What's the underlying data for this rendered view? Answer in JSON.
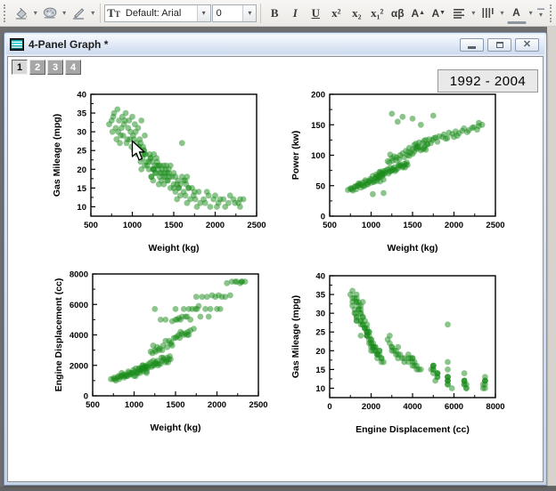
{
  "toolbar": {
    "font_combo": {
      "value": "Default: Arial"
    },
    "size_combo": {
      "value": "0"
    },
    "format_buttons": {
      "bold": "B",
      "italic": "I",
      "underline": "U",
      "superscript": "x²",
      "subscript": "x₂",
      "subsuperscript": "x₁²",
      "greek": "αβ",
      "increase_font": "A",
      "decrease_font": "A",
      "font_color": "A"
    }
  },
  "window": {
    "title": "4-Panel Graph *"
  },
  "layer_buttons": {
    "labels": [
      "1",
      "2",
      "3",
      "4"
    ],
    "active": "1"
  },
  "annotation": "1992 - 2004",
  "chart_data": {
    "type": "scatter",
    "marker": {
      "color": "#1a8c1a",
      "opacity": 0.5,
      "radius": 3.4
    },
    "record_fields": [
      "weight_kg",
      "gas_mileage_mpg",
      "power_kw",
      "engine_displacement_cc"
    ],
    "records": [
      [
        750,
        33,
        45,
        1100
      ],
      [
        780,
        35,
        42,
        1000
      ],
      [
        800,
        31,
        48,
        1200
      ],
      [
        820,
        36,
        44,
        1100
      ],
      [
        840,
        33,
        50,
        1300
      ],
      [
        860,
        29,
        52,
        1300
      ],
      [
        880,
        34,
        47,
        1200
      ],
      [
        900,
        32,
        55,
        1400
      ],
      [
        920,
        35,
        50,
        1300
      ],
      [
        940,
        28,
        57,
        1500
      ],
      [
        960,
        33,
        52,
        1400
      ],
      [
        980,
        30,
        58,
        1500
      ],
      [
        1000,
        34,
        55,
        1300
      ],
      [
        1010,
        29,
        60,
        1600
      ],
      [
        1030,
        32,
        56,
        1500
      ],
      [
        1050,
        27,
        62,
        1600
      ],
      [
        1070,
        31,
        58,
        1500
      ],
      [
        1090,
        28,
        63,
        1700
      ],
      [
        1110,
        33,
        57,
        1600
      ],
      [
        1130,
        26,
        65,
        1800
      ],
      [
        760,
        30,
        46,
        1200
      ],
      [
        810,
        28,
        49,
        1300
      ],
      [
        870,
        31,
        53,
        1400
      ],
      [
        930,
        27,
        59,
        1600
      ],
      [
        990,
        26,
        61,
        1700
      ],
      [
        1040,
        30,
        57,
        1500
      ],
      [
        1100,
        27,
        64,
        1800
      ],
      [
        1150,
        29,
        60,
        1600
      ],
      [
        720,
        32,
        43,
        1100
      ],
      [
        850,
        27,
        54,
        1500
      ],
      [
        890,
        29,
        51,
        1300
      ],
      [
        950,
        31,
        53,
        1400
      ],
      [
        1020,
        25,
        66,
        1800
      ],
      [
        1080,
        26,
        62,
        1700
      ],
      [
        1140,
        25,
        68,
        1900
      ],
      [
        770,
        34,
        44,
        1100
      ],
      [
        830,
        30,
        50,
        1250
      ],
      [
        910,
        33,
        49,
        1300
      ],
      [
        970,
        28,
        56,
        1500
      ],
      [
        1060,
        25,
        64,
        1800
      ],
      [
        1060,
        24,
        68,
        1800
      ],
      [
        1100,
        22,
        72,
        2000
      ],
      [
        1140,
        25,
        70,
        1900
      ],
      [
        1180,
        21,
        75,
        2100
      ],
      [
        1220,
        23,
        73,
        2000
      ],
      [
        1260,
        20,
        78,
        2200
      ],
      [
        1300,
        22,
        76,
        2100
      ],
      [
        1340,
        19,
        82,
        2300
      ],
      [
        1380,
        21,
        80,
        2200
      ],
      [
        1420,
        19,
        85,
        2400
      ],
      [
        1080,
        26,
        66,
        1700
      ],
      [
        1120,
        23,
        71,
        1900
      ],
      [
        1160,
        24,
        69,
        1800
      ],
      [
        1200,
        20,
        77,
        2200
      ],
      [
        1240,
        22,
        74,
        2000
      ],
      [
        1280,
        19,
        80,
        2300
      ],
      [
        1320,
        21,
        78,
        2100
      ],
      [
        1360,
        20,
        83,
        2400
      ],
      [
        1400,
        18,
        86,
        2500
      ],
      [
        1440,
        20,
        84,
        2400
      ],
      [
        1090,
        25,
        67,
        1800
      ],
      [
        1150,
        21,
        74,
        2000
      ],
      [
        1210,
        24,
        70,
        1900
      ],
      [
        1270,
        21,
        76,
        2100
      ],
      [
        1330,
        18,
        84,
        2500
      ],
      [
        1390,
        19,
        82,
        2300
      ],
      [
        1430,
        17,
        88,
        2600
      ],
      [
        1110,
        20,
        73,
        2000
      ],
      [
        1170,
        22,
        72,
        1900
      ],
      [
        1230,
        18,
        79,
        2300
      ],
      [
        1290,
        23,
        74,
        2000
      ],
      [
        1350,
        17,
        85,
        2500
      ],
      [
        1410,
        21,
        80,
        2200
      ],
      [
        1130,
        24,
        68,
        1800
      ],
      [
        1250,
        20,
        75,
        2100
      ],
      [
        1200,
        22,
        90,
        2900
      ],
      [
        1250,
        20,
        95,
        3000
      ],
      [
        1300,
        21,
        92,
        3000
      ],
      [
        1350,
        19,
        100,
        3300
      ],
      [
        1400,
        20,
        97,
        3200
      ],
      [
        1450,
        18,
        105,
        3500
      ],
      [
        1500,
        19,
        102,
        3800
      ],
      [
        1550,
        17,
        110,
        3800
      ],
      [
        1600,
        18,
        108,
        4000
      ],
      [
        1650,
        16,
        115,
        4200
      ],
      [
        1220,
        23,
        88,
        2800
      ],
      [
        1280,
        19,
        98,
        3200
      ],
      [
        1340,
        21,
        94,
        3000
      ],
      [
        1420,
        17,
        107,
        3600
      ],
      [
        1480,
        18,
        104,
        3800
      ],
      [
        1540,
        16,
        112,
        4000
      ],
      [
        1620,
        17,
        110,
        4100
      ],
      [
        1680,
        15,
        118,
        4300
      ],
      [
        1230,
        18,
        101,
        3300
      ],
      [
        1310,
        20,
        96,
        3100
      ],
      [
        1460,
        21,
        99,
        3300
      ],
      [
        1520,
        18,
        106,
        3900
      ],
      [
        1580,
        16,
        113,
        4100
      ],
      [
        1660,
        18,
        109,
        4000
      ],
      [
        1720,
        15,
        120,
        4400
      ],
      [
        1260,
        24,
        91,
        2900
      ],
      [
        1380,
        18,
        103,
        3600
      ],
      [
        1440,
        19,
        100,
        3400
      ],
      [
        1560,
        15,
        114,
        4200
      ],
      [
        1640,
        17,
        111,
        4000
      ],
      [
        1500,
        16,
        110,
        5000
      ],
      [
        1560,
        15,
        115,
        5000
      ],
      [
        1620,
        14,
        120,
        5200
      ],
      [
        1680,
        15,
        118,
        5000
      ],
      [
        1740,
        13,
        125,
        5700
      ],
      [
        1800,
        14,
        122,
        5200
      ],
      [
        1860,
        12,
        130,
        5700
      ],
      [
        1920,
        13,
        128,
        5700
      ],
      [
        1980,
        12,
        135,
        6500
      ],
      [
        2040,
        11,
        132,
        5700
      ],
      [
        2100,
        12,
        140,
        6500
      ],
      [
        2160,
        11,
        138,
        6600
      ],
      [
        2220,
        12,
        145,
        7500
      ],
      [
        2280,
        11,
        142,
        7400
      ],
      [
        2340,
        12,
        150,
        7500
      ],
      [
        1520,
        14,
        117,
        5000
      ],
      [
        1640,
        13,
        124,
        5200
      ],
      [
        1760,
        12,
        128,
        5700
      ],
      [
        1880,
        11,
        134,
        6500
      ],
      [
        2000,
        13,
        130,
        5700
      ],
      [
        2120,
        10,
        144,
        7400
      ],
      [
        2240,
        11,
        146,
        7500
      ],
      [
        1580,
        13,
        121,
        5200
      ],
      [
        1700,
        12,
        126,
        5700
      ],
      [
        1820,
        11,
        131,
        6500
      ],
      [
        1940,
        10,
        137,
        6600
      ],
      [
        2060,
        12,
        136,
        6500
      ],
      [
        2180,
        13,
        141,
        7500
      ],
      [
        2300,
        10,
        148,
        7500
      ],
      [
        1460,
        15,
        112,
        4900
      ],
      [
        1540,
        12,
        119,
        5100
      ],
      [
        1660,
        11,
        125,
        5700
      ],
      [
        1780,
        10,
        129,
        5900
      ],
      [
        1900,
        14,
        127,
        5200
      ],
      [
        2020,
        10,
        139,
        6600
      ],
      [
        1250,
        17,
        168,
        5700
      ],
      [
        1380,
        16,
        163,
        5000
      ],
      [
        1500,
        15,
        160,
        5700
      ],
      [
        1750,
        14,
        165,
        6500
      ],
      [
        2300,
        12,
        153,
        7500
      ],
      [
        1600,
        27,
        150,
        5700
      ],
      [
        1020,
        28,
        36,
        1300
      ],
      [
        1150,
        24,
        38,
        1500
      ],
      [
        1320,
        16,
        155,
        5000
      ]
    ],
    "panels": [
      {
        "name": "mileage-vs-weight",
        "x_field": 0,
        "y_field": 1,
        "xlabel": "Weight (kg)",
        "ylabel": "Gas Mileage (mpg)",
        "xlim": [
          500,
          2500
        ],
        "ylim": [
          7.5,
          40
        ],
        "xticks": [
          500,
          1000,
          1500,
          2000,
          2500
        ],
        "yticks": [
          10,
          15,
          20,
          25,
          30,
          35,
          40
        ]
      },
      {
        "name": "power-vs-weight",
        "x_field": 0,
        "y_field": 2,
        "xlabel": "Weight (kg)",
        "ylabel": "Power (kw)",
        "xlim": [
          500,
          2500
        ],
        "ylim": [
          0,
          200
        ],
        "xticks": [
          500,
          1000,
          1500,
          2000,
          2500
        ],
        "yticks": [
          0,
          50,
          100,
          150,
          200
        ]
      },
      {
        "name": "displacement-vs-weight",
        "x_field": 0,
        "y_field": 3,
        "xlabel": "Weight (kg)",
        "ylabel": "Engine Displacement (cc)",
        "xlim": [
          500,
          2500
        ],
        "ylim": [
          0,
          8000
        ],
        "xticks": [
          500,
          1000,
          1500,
          2000,
          2500
        ],
        "yticks": [
          0,
          2000,
          4000,
          6000,
          8000
        ]
      },
      {
        "name": "mileage-vs-displacement",
        "x_field": 3,
        "y_field": 1,
        "xlabel": "Engine Displacement (cc)",
        "ylabel": "Gas Mileage (mpg)",
        "xlim": [
          0,
          8000
        ],
        "ylim": [
          7.5,
          40
        ],
        "xticks": [
          0,
          2000,
          4000,
          6000,
          8000
        ],
        "yticks": [
          10,
          15,
          20,
          25,
          30,
          35,
          40
        ]
      }
    ]
  }
}
